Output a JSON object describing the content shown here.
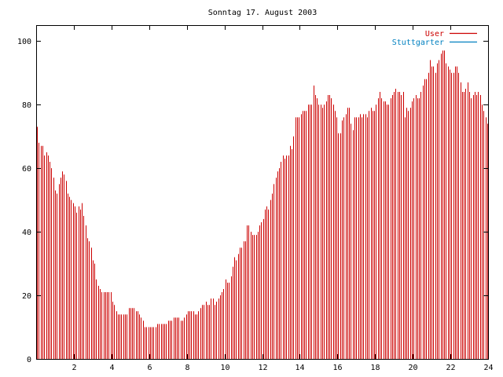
{
  "chart_data": {
    "type": "bar",
    "title": "Sonntag 17. August 2003",
    "xlabel": "",
    "ylabel": "",
    "xlim": [
      0,
      24
    ],
    "ylim": [
      0,
      105
    ],
    "x_ticks": [
      "2",
      "4",
      "6",
      "8",
      "10",
      "12",
      "14",
      "16",
      "18",
      "20",
      "22",
      "24"
    ],
    "y_ticks": [
      "0",
      "20",
      "40",
      "60",
      "80",
      "100"
    ],
    "legend_position": "top-right",
    "grid": false,
    "series": [
      {
        "name": "User",
        "color": "#cc0000",
        "values": [
          73,
          68,
          67,
          67,
          64,
          65,
          64,
          62,
          60,
          57,
          53,
          52,
          55,
          57,
          59,
          58,
          56,
          52,
          51,
          50,
          49,
          48,
          46,
          48,
          47,
          49,
          45,
          42,
          38,
          37,
          35,
          31,
          30,
          25,
          23,
          22,
          21,
          21,
          21,
          21,
          21,
          21,
          18,
          17,
          15,
          14,
          14,
          14,
          14,
          14,
          14,
          16,
          16,
          16,
          16,
          15,
          15,
          14,
          13,
          12,
          10,
          10,
          10,
          10,
          10,
          10,
          10,
          11,
          11,
          11,
          11,
          11,
          11,
          12,
          12,
          12,
          13,
          13,
          13,
          13,
          12,
          12,
          13,
          14,
          15,
          15,
          15,
          15,
          14,
          14,
          15,
          16,
          17,
          17,
          18,
          17,
          17,
          19,
          19,
          17,
          18,
          19,
          20,
          21,
          22,
          25,
          24,
          24,
          26,
          29,
          32,
          31,
          33,
          35,
          35,
          37,
          37,
          42,
          42,
          40,
          39,
          39,
          39,
          40,
          42,
          43,
          44,
          47,
          48,
          47,
          50,
          52,
          55,
          57,
          59,
          60,
          62,
          64,
          63,
          64,
          64,
          67,
          66,
          70,
          76,
          76,
          76,
          77,
          78,
          78,
          78,
          80,
          80,
          80,
          86,
          83,
          82,
          80,
          80,
          79,
          80,
          81,
          83,
          83,
          82,
          80,
          78,
          76,
          71,
          71,
          75,
          76,
          77,
          79,
          79,
          74,
          72,
          76,
          76,
          76,
          77,
          76,
          77,
          77,
          76,
          78,
          79,
          78,
          78,
          80,
          82,
          84,
          82,
          81,
          81,
          80,
          80,
          82,
          83,
          84,
          85,
          84,
          84,
          83,
          84,
          76,
          79,
          78,
          79,
          81,
          82,
          83,
          82,
          82,
          84,
          86,
          88,
          88,
          90,
          94,
          92,
          92,
          90,
          93,
          94,
          96,
          97,
          97,
          93,
          92,
          91,
          90,
          90,
          92,
          92,
          90,
          87,
          84,
          84,
          85,
          87,
          84,
          82,
          83,
          84,
          83,
          84,
          83,
          80,
          78,
          76,
          74
        ]
      },
      {
        "name": "Stuttgarter",
        "color": "#0080c0",
        "values": []
      }
    ]
  }
}
